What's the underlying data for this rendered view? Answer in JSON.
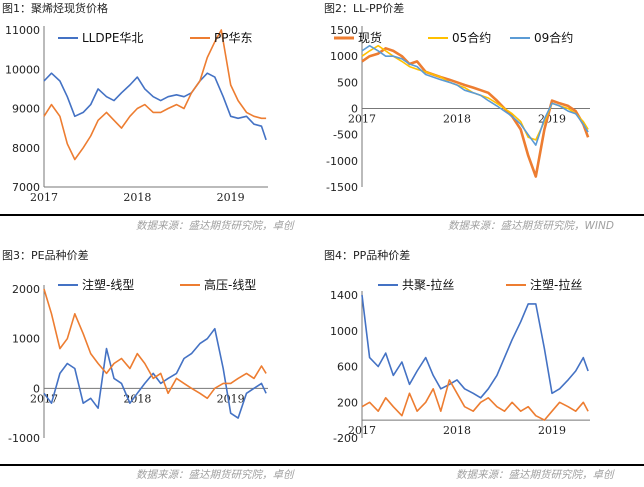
{
  "chart_data": [
    {
      "type": "line",
      "title": "图1：聚烯烃现货价格",
      "x_range": [
        2017.0,
        2019.4
      ],
      "ylim": [
        7000,
        11000
      ],
      "yticks": [
        7000,
        8000,
        9000,
        10000,
        11000
      ],
      "xtick_labels": [
        "2017",
        "2018",
        "2019"
      ],
      "legend_position": "top",
      "series": [
        {
          "name": "LLDPE华北",
          "color": "#4472C4",
          "x": [
            2017.0,
            2017.08,
            2017.17,
            2017.25,
            2017.33,
            2017.42,
            2017.5,
            2017.58,
            2017.67,
            2017.75,
            2017.83,
            2017.92,
            2018.0,
            2018.08,
            2018.17,
            2018.25,
            2018.33,
            2018.42,
            2018.5,
            2018.58,
            2018.67,
            2018.75,
            2018.83,
            2018.92,
            2019.0,
            2019.08,
            2019.17,
            2019.25,
            2019.33,
            2019.38
          ],
          "y": [
            9700,
            9900,
            9700,
            9300,
            8800,
            8900,
            9100,
            9500,
            9300,
            9200,
            9400,
            9600,
            9800,
            9500,
            9300,
            9200,
            9300,
            9350,
            9300,
            9400,
            9700,
            9900,
            9800,
            9300,
            8800,
            8750,
            8800,
            8600,
            8550,
            8200
          ]
        },
        {
          "name": "PP华东",
          "color": "#ED7D31",
          "x": [
            2017.0,
            2017.08,
            2017.17,
            2017.25,
            2017.33,
            2017.42,
            2017.5,
            2017.58,
            2017.67,
            2017.75,
            2017.83,
            2017.92,
            2018.0,
            2018.08,
            2018.17,
            2018.25,
            2018.33,
            2018.42,
            2018.5,
            2018.58,
            2018.67,
            2018.75,
            2018.83,
            2018.9,
            2019.0,
            2019.08,
            2019.17,
            2019.25,
            2019.33,
            2019.38
          ],
          "y": [
            8800,
            9100,
            8800,
            8100,
            7700,
            8000,
            8300,
            8700,
            8900,
            8700,
            8500,
            8800,
            9000,
            9100,
            8900,
            8900,
            9000,
            9100,
            9000,
            9400,
            9700,
            10300,
            10700,
            11000,
            9600,
            9200,
            8900,
            8800,
            8750,
            8750
          ]
        }
      ]
    },
    {
      "type": "line",
      "title": "图2：LL-PP价差",
      "x_range": [
        2017.0,
        2019.4
      ],
      "ylim": [
        -1500,
        1500
      ],
      "yticks": [
        -1500,
        -1000,
        -500,
        0,
        500,
        1000,
        1500
      ],
      "xtick_labels": [
        "2017",
        "2018",
        "2019"
      ],
      "legend_position": "top",
      "series": [
        {
          "name": "现货",
          "color": "#ED7D31",
          "x": [
            2017.0,
            2017.08,
            2017.17,
            2017.25,
            2017.33,
            2017.42,
            2017.5,
            2017.58,
            2017.67,
            2017.75,
            2017.83,
            2017.92,
            2018.0,
            2018.08,
            2018.17,
            2018.25,
            2018.33,
            2018.42,
            2018.5,
            2018.58,
            2018.67,
            2018.75,
            2018.83,
            2018.92,
            2019.0,
            2019.08,
            2019.17,
            2019.25,
            2019.33,
            2019.38
          ],
          "y": [
            900,
            1000,
            1050,
            1150,
            1100,
            1000,
            850,
            900,
            700,
            650,
            600,
            550,
            500,
            450,
            400,
            350,
            300,
            150,
            0,
            -150,
            -400,
            -900,
            -1300,
            -400,
            150,
            100,
            50,
            -50,
            -300,
            -550
          ]
        },
        {
          "name": "05合约",
          "color": "#FFC000",
          "x": [
            2017.0,
            2017.08,
            2017.17,
            2017.25,
            2017.33,
            2017.42,
            2017.5,
            2017.58,
            2017.67,
            2017.75,
            2017.83,
            2017.92,
            2018.0,
            2018.08,
            2018.17,
            2018.25,
            2018.33,
            2018.42,
            2018.5,
            2018.58,
            2018.67,
            2018.75,
            2018.83,
            2018.92,
            2019.0,
            2019.08,
            2019.17,
            2019.25,
            2019.33,
            2019.38
          ],
          "y": [
            1000,
            1100,
            1200,
            1100,
            1000,
            900,
            800,
            750,
            700,
            650,
            600,
            500,
            450,
            400,
            300,
            250,
            200,
            100,
            0,
            -100,
            -250,
            -550,
            -600,
            -250,
            100,
            50,
            0,
            -100,
            -250,
            -400
          ]
        },
        {
          "name": "09合约",
          "color": "#5B9BD5",
          "x": [
            2017.0,
            2017.08,
            2017.17,
            2017.25,
            2017.33,
            2017.42,
            2017.5,
            2017.58,
            2017.67,
            2017.75,
            2017.83,
            2017.92,
            2018.0,
            2018.08,
            2018.17,
            2018.25,
            2018.33,
            2018.42,
            2018.5,
            2018.58,
            2018.67,
            2018.75,
            2018.83,
            2018.92,
            2019.0,
            2019.08,
            2019.17,
            2019.25,
            2019.33,
            2019.38
          ],
          "y": [
            1100,
            1200,
            1100,
            1000,
            1000,
            950,
            850,
            800,
            650,
            600,
            550,
            500,
            450,
            350,
            300,
            250,
            150,
            50,
            -50,
            -150,
            -300,
            -500,
            -700,
            -200,
            100,
            50,
            -50,
            -100,
            -300,
            -450
          ]
        }
      ]
    },
    {
      "type": "line",
      "title": "图3：PE品种价差",
      "x_range": [
        2017.0,
        2019.4
      ],
      "ylim": [
        -1000,
        2000
      ],
      "yticks": [
        -1000,
        0,
        1000,
        2000
      ],
      "xtick_labels": [
        "2017",
        "2018",
        "2019"
      ],
      "legend_position": "top",
      "series": [
        {
          "name": "注塑-线型",
          "color": "#4472C4",
          "x": [
            2017.0,
            2017.08,
            2017.17,
            2017.25,
            2017.33,
            2017.42,
            2017.5,
            2017.58,
            2017.67,
            2017.75,
            2017.83,
            2017.92,
            2018.0,
            2018.08,
            2018.17,
            2018.25,
            2018.33,
            2018.42,
            2018.5,
            2018.58,
            2018.67,
            2018.75,
            2018.83,
            2018.92,
            2019.0,
            2019.08,
            2019.17,
            2019.25,
            2019.33,
            2019.38
          ],
          "y": [
            -100,
            -300,
            300,
            500,
            400,
            -300,
            -200,
            -400,
            800,
            200,
            100,
            -300,
            -100,
            100,
            300,
            100,
            200,
            300,
            600,
            700,
            900,
            1000,
            1200,
            400,
            -500,
            -600,
            -100,
            0,
            100,
            -100
          ]
        },
        {
          "name": "高压-线型",
          "color": "#ED7D31",
          "x": [
            2017.0,
            2017.08,
            2017.17,
            2017.25,
            2017.33,
            2017.42,
            2017.5,
            2017.58,
            2017.67,
            2017.75,
            2017.83,
            2017.92,
            2018.0,
            2018.08,
            2018.17,
            2018.25,
            2018.33,
            2018.42,
            2018.5,
            2018.58,
            2018.67,
            2018.75,
            2018.83,
            2018.92,
            2019.0,
            2019.08,
            2019.17,
            2019.25,
            2019.33,
            2019.38
          ],
          "y": [
            2000,
            1500,
            800,
            1000,
            1500,
            1100,
            700,
            500,
            300,
            500,
            600,
            400,
            700,
            500,
            200,
            300,
            -100,
            200,
            100,
            0,
            -100,
            -200,
            0,
            100,
            100,
            200,
            300,
            200,
            450,
            300
          ]
        }
      ]
    },
    {
      "type": "line",
      "title": "图4：PP品种价差",
      "x_range": [
        2017.0,
        2019.4
      ],
      "ylim": [
        -200,
        1400
      ],
      "yticks": [
        -200,
        200,
        600,
        1000,
        1400
      ],
      "xtick_labels": [
        "2017",
        "2018",
        "2019"
      ],
      "legend_position": "top",
      "series": [
        {
          "name": "共聚-拉丝",
          "color": "#4472C4",
          "x": [
            2017.0,
            2017.08,
            2017.17,
            2017.25,
            2017.33,
            2017.42,
            2017.5,
            2017.58,
            2017.67,
            2017.75,
            2017.83,
            2017.92,
            2018.0,
            2018.08,
            2018.17,
            2018.25,
            2018.33,
            2018.42,
            2018.5,
            2018.58,
            2018.67,
            2018.75,
            2018.83,
            2018.92,
            2019.0,
            2019.08,
            2019.17,
            2019.25,
            2019.33,
            2019.38
          ],
          "y": [
            1400,
            700,
            600,
            750,
            500,
            650,
            400,
            550,
            700,
            500,
            350,
            400,
            450,
            350,
            300,
            250,
            350,
            500,
            700,
            900,
            1100,
            1300,
            1300,
            800,
            300,
            350,
            450,
            550,
            700,
            550
          ]
        },
        {
          "name": "注塑-拉丝",
          "color": "#ED7D31",
          "x": [
            2017.0,
            2017.08,
            2017.17,
            2017.25,
            2017.33,
            2017.42,
            2017.5,
            2017.58,
            2017.67,
            2017.75,
            2017.83,
            2017.92,
            2018.0,
            2018.08,
            2018.17,
            2018.25,
            2018.33,
            2018.42,
            2018.5,
            2018.58,
            2018.67,
            2018.75,
            2018.83,
            2018.92,
            2019.0,
            2019.08,
            2019.17,
            2019.25,
            2019.33,
            2019.38
          ],
          "y": [
            150,
            200,
            100,
            250,
            150,
            50,
            300,
            100,
            200,
            350,
            100,
            450,
            300,
            150,
            100,
            200,
            250,
            150,
            100,
            200,
            100,
            150,
            50,
            0,
            100,
            200,
            150,
            100,
            200,
            100
          ]
        }
      ]
    }
  ],
  "sources": [
    "数据来源：盛达期货研究院，卓创",
    "数据来源：盛达期货研究院，WIND",
    "数据来源：盛达期货研究院，卓创",
    "数据来源：盛达期货研究院，卓创"
  ]
}
